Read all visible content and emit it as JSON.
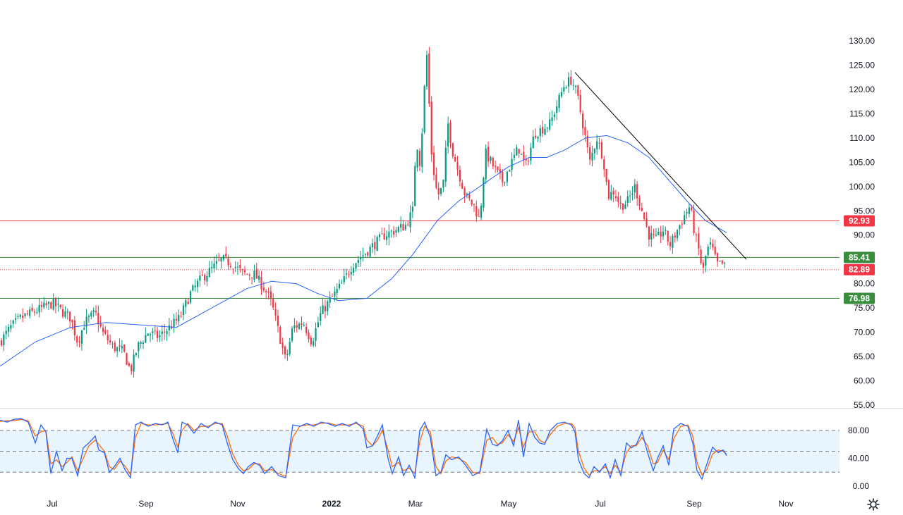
{
  "chart_data": {
    "type": "candlestick",
    "price_axis": {
      "ticks": [
        "130.00",
        "125.00",
        "120.00",
        "115.00",
        "110.00",
        "105.00",
        "100.00",
        "95.00",
        "90.00",
        "85.00",
        "80.00",
        "75.00",
        "70.00",
        "65.00",
        "60.00",
        "55.00"
      ],
      "range": [
        55,
        131
      ]
    },
    "time_axis": {
      "labels": [
        "Jul",
        "Sep",
        "Nov",
        "2022",
        "Mar",
        "May",
        "Jul",
        "Sep",
        "Nov"
      ]
    },
    "horizontal_levels": [
      {
        "value": 92.93,
        "label": "92.93",
        "color": "#f23645"
      },
      {
        "value": 85.41,
        "label": "85.41",
        "color": "#388e3c"
      },
      {
        "value": 76.98,
        "label": "76.98",
        "color": "#388e3c"
      }
    ],
    "last_price": {
      "value": 82.89,
      "label": "82.89",
      "color": "#f23645"
    },
    "price_path": [
      [
        0,
        68
      ],
      [
        15,
        71
      ],
      [
        30,
        73
      ],
      [
        45,
        74
      ],
      [
        60,
        75
      ],
      [
        75,
        76
      ],
      [
        90,
        74
      ],
      [
        100,
        73
      ],
      [
        110,
        68
      ],
      [
        120,
        72
      ],
      [
        135,
        74
      ],
      [
        145,
        70
      ],
      [
        160,
        67
      ],
      [
        175,
        66
      ],
      [
        185,
        62
      ],
      [
        195,
        67
      ],
      [
        210,
        70
      ],
      [
        225,
        69
      ],
      [
        240,
        71
      ],
      [
        255,
        73
      ],
      [
        270,
        78
      ],
      [
        285,
        81
      ],
      [
        300,
        83
      ],
      [
        315,
        85
      ],
      [
        330,
        84
      ],
      [
        345,
        82
      ],
      [
        360,
        82
      ],
      [
        375,
        79
      ],
      [
        385,
        76
      ],
      [
        395,
        70
      ],
      [
        405,
        64
      ],
      [
        415,
        71
      ],
      [
        430,
        72
      ],
      [
        442,
        68
      ],
      [
        455,
        74
      ],
      [
        470,
        77
      ],
      [
        485,
        80
      ],
      [
        500,
        84
      ],
      [
        515,
        86
      ],
      [
        530,
        88
      ],
      [
        545,
        90
      ],
      [
        560,
        91
      ],
      [
        575,
        92
      ],
      [
        585,
        95
      ],
      [
        590,
        110
      ],
      [
        596,
        104
      ],
      [
        600,
        117
      ],
      [
        605,
        127
      ],
      [
        612,
        106
      ],
      [
        620,
        98
      ],
      [
        628,
        100
      ],
      [
        635,
        113
      ],
      [
        642,
        107
      ],
      [
        650,
        103
      ],
      [
        660,
        98
      ],
      [
        672,
        96
      ],
      [
        680,
        93
      ],
      [
        688,
        107
      ],
      [
        700,
        104
      ],
      [
        712,
        101
      ],
      [
        722,
        104
      ],
      [
        735,
        108
      ],
      [
        745,
        104
      ],
      [
        758,
        111
      ],
      [
        770,
        112
      ],
      [
        780,
        113
      ],
      [
        790,
        117
      ],
      [
        800,
        121
      ],
      [
        810,
        122
      ],
      [
        818,
        119
      ],
      [
        826,
        113
      ],
      [
        836,
        105
      ],
      [
        846,
        110
      ],
      [
        855,
        106
      ],
      [
        862,
        98
      ],
      [
        870,
        99
      ],
      [
        880,
        96
      ],
      [
        890,
        97
      ],
      [
        900,
        100
      ],
      [
        910,
        95
      ],
      [
        920,
        90
      ],
      [
        930,
        89
      ],
      [
        940,
        91
      ],
      [
        950,
        88
      ],
      [
        960,
        91
      ],
      [
        970,
        94
      ],
      [
        978,
        96
      ],
      [
        985,
        90
      ],
      [
        992,
        86
      ],
      [
        996,
        82
      ],
      [
        1002,
        87
      ],
      [
        1008,
        88
      ],
      [
        1016,
        84
      ],
      [
        1024,
        84
      ],
      [
        1030,
        83
      ]
    ],
    "moving_average": [
      [
        0,
        63
      ],
      [
        50,
        68
      ],
      [
        100,
        71
      ],
      [
        150,
        72
      ],
      [
        200,
        71.5
      ],
      [
        250,
        71
      ],
      [
        300,
        75
      ],
      [
        350,
        79
      ],
      [
        385,
        80.5
      ],
      [
        420,
        80
      ],
      [
        450,
        78
      ],
      [
        480,
        76.5
      ],
      [
        520,
        77
      ],
      [
        555,
        81
      ],
      [
        585,
        86
      ],
      [
        620,
        93
      ],
      [
        650,
        97
      ],
      [
        690,
        101
      ],
      [
        720,
        104
      ],
      [
        750,
        106
      ],
      [
        775,
        106
      ],
      [
        800,
        107.5
      ],
      [
        830,
        110
      ],
      [
        860,
        110.5
      ],
      [
        890,
        109
      ],
      [
        920,
        106
      ],
      [
        950,
        101
      ],
      [
        980,
        96
      ],
      [
        1000,
        93
      ],
      [
        1030,
        90.5
      ]
    ],
    "trendline": {
      "from": [
        815,
        123.5
      ],
      "to": [
        1058,
        85
      ]
    },
    "oscillator": {
      "ticks": [
        "80.00",
        "40.00",
        "0.00"
      ],
      "range": [
        0,
        100
      ],
      "band": [
        20,
        80
      ],
      "midline": 50,
      "fast": [
        [
          0,
          95
        ],
        [
          10,
          92
        ],
        [
          20,
          96
        ],
        [
          30,
          97
        ],
        [
          40,
          92
        ],
        [
          50,
          62
        ],
        [
          58,
          88
        ],
        [
          65,
          78
        ],
        [
          72,
          18
        ],
        [
          80,
          50
        ],
        [
          88,
          22
        ],
        [
          95,
          40
        ],
        [
          102,
          40
        ],
        [
          110,
          15
        ],
        [
          118,
          55
        ],
        [
          126,
          62
        ],
        [
          135,
          72
        ],
        [
          140,
          52
        ],
        [
          148,
          48
        ],
        [
          155,
          20
        ],
        [
          162,
          28
        ],
        [
          170,
          40
        ],
        [
          178,
          22
        ],
        [
          185,
          12
        ],
        [
          192,
          88
        ],
        [
          200,
          92
        ],
        [
          210,
          86
        ],
        [
          220,
          90
        ],
        [
          230,
          88
        ],
        [
          238,
          92
        ],
        [
          245,
          68
        ],
        [
          252,
          48
        ],
        [
          258,
          92
        ],
        [
          266,
          88
        ],
        [
          275,
          76
        ],
        [
          285,
          90
        ],
        [
          295,
          84
        ],
        [
          305,
          92
        ],
        [
          315,
          88
        ],
        [
          322,
          62
        ],
        [
          330,
          38
        ],
        [
          338,
          25
        ],
        [
          345,
          18
        ],
        [
          352,
          28
        ],
        [
          360,
          34
        ],
        [
          368,
          30
        ],
        [
          375,
          18
        ],
        [
          385,
          28
        ],
        [
          395,
          15
        ],
        [
          405,
          12
        ],
        [
          415,
          88
        ],
        [
          425,
          86
        ],
        [
          435,
          90
        ],
        [
          445,
          86
        ],
        [
          455,
          92
        ],
        [
          465,
          90
        ],
        [
          475,
          86
        ],
        [
          485,
          90
        ],
        [
          495,
          86
        ],
        [
          505,
          92
        ],
        [
          515,
          82
        ],
        [
          520,
          55
        ],
        [
          528,
          58
        ],
        [
          535,
          72
        ],
        [
          542,
          88
        ],
        [
          550,
          40
        ],
        [
          556,
          18
        ],
        [
          565,
          42
        ],
        [
          572,
          15
        ],
        [
          580,
          30
        ],
        [
          588,
          12
        ],
        [
          595,
          80
        ],
        [
          602,
          92
        ],
        [
          610,
          70
        ],
        [
          618,
          15
        ],
        [
          625,
          20
        ],
        [
          632,
          45
        ],
        [
          640,
          38
        ],
        [
          650,
          42
        ],
        [
          660,
          30
        ],
        [
          670,
          15
        ],
        [
          680,
          20
        ],
        [
          690,
          82
        ],
        [
          698,
          60
        ],
        [
          705,
          58
        ],
        [
          712,
          65
        ],
        [
          720,
          80
        ],
        [
          728,
          58
        ],
        [
          735,
          95
        ],
        [
          742,
          42
        ],
        [
          750,
          90
        ],
        [
          758,
          70
        ],
        [
          765,
          62
        ],
        [
          772,
          60
        ],
        [
          780,
          80
        ],
        [
          790,
          90
        ],
        [
          800,
          92
        ],
        [
          810,
          88
        ],
        [
          815,
          78
        ],
        [
          820,
          38
        ],
        [
          828,
          18
        ],
        [
          835,
          12
        ],
        [
          842,
          28
        ],
        [
          850,
          20
        ],
        [
          858,
          32
        ],
        [
          865,
          12
        ],
        [
          872,
          38
        ],
        [
          880,
          15
        ],
        [
          888,
          62
        ],
        [
          895,
          55
        ],
        [
          902,
          60
        ],
        [
          910,
          78
        ],
        [
          918,
          48
        ],
        [
          926,
          22
        ],
        [
          932,
          40
        ],
        [
          940,
          58
        ],
        [
          948,
          30
        ],
        [
          955,
          82
        ],
        [
          965,
          90
        ],
        [
          975,
          86
        ],
        [
          982,
          62
        ],
        [
          988,
          22
        ],
        [
          995,
          10
        ],
        [
          1002,
          32
        ],
        [
          1010,
          56
        ],
        [
          1018,
          48
        ],
        [
          1025,
          52
        ],
        [
          1030,
          44
        ]
      ],
      "slow": [
        [
          0,
          93
        ],
        [
          10,
          94
        ],
        [
          20,
          94
        ],
        [
          30,
          96
        ],
        [
          40,
          94
        ],
        [
          50,
          72
        ],
        [
          58,
          78
        ],
        [
          65,
          80
        ],
        [
          72,
          32
        ],
        [
          80,
          38
        ],
        [
          88,
          28
        ],
        [
          95,
          34
        ],
        [
          102,
          42
        ],
        [
          110,
          22
        ],
        [
          118,
          40
        ],
        [
          126,
          58
        ],
        [
          135,
          66
        ],
        [
          140,
          60
        ],
        [
          148,
          50
        ],
        [
          155,
          28
        ],
        [
          162,
          24
        ],
        [
          170,
          36
        ],
        [
          178,
          28
        ],
        [
          185,
          16
        ],
        [
          192,
          70
        ],
        [
          200,
          90
        ],
        [
          210,
          88
        ],
        [
          220,
          88
        ],
        [
          230,
          89
        ],
        [
          238,
          90
        ],
        [
          245,
          76
        ],
        [
          252,
          56
        ],
        [
          258,
          80
        ],
        [
          266,
          90
        ],
        [
          275,
          80
        ],
        [
          285,
          86
        ],
        [
          295,
          86
        ],
        [
          305,
          90
        ],
        [
          315,
          90
        ],
        [
          322,
          72
        ],
        [
          330,
          46
        ],
        [
          338,
          30
        ],
        [
          345,
          22
        ],
        [
          352,
          24
        ],
        [
          360,
          32
        ],
        [
          368,
          32
        ],
        [
          375,
          22
        ],
        [
          385,
          24
        ],
        [
          395,
          18
        ],
        [
          405,
          14
        ],
        [
          415,
          70
        ],
        [
          425,
          86
        ],
        [
          435,
          88
        ],
        [
          445,
          88
        ],
        [
          455,
          90
        ],
        [
          465,
          91
        ],
        [
          475,
          88
        ],
        [
          485,
          88
        ],
        [
          495,
          88
        ],
        [
          505,
          90
        ],
        [
          515,
          86
        ],
        [
          520,
          66
        ],
        [
          528,
          58
        ],
        [
          535,
          66
        ],
        [
          542,
          80
        ],
        [
          550,
          52
        ],
        [
          556,
          28
        ],
        [
          565,
          34
        ],
        [
          572,
          22
        ],
        [
          580,
          26
        ],
        [
          588,
          18
        ],
        [
          595,
          64
        ],
        [
          602,
          86
        ],
        [
          610,
          78
        ],
        [
          618,
          28
        ],
        [
          625,
          18
        ],
        [
          632,
          36
        ],
        [
          640,
          42
        ],
        [
          650,
          40
        ],
        [
          660,
          34
        ],
        [
          670,
          20
        ],
        [
          680,
          18
        ],
        [
          690,
          66
        ],
        [
          698,
          70
        ],
        [
          705,
          60
        ],
        [
          712,
          62
        ],
        [
          720,
          74
        ],
        [
          728,
          64
        ],
        [
          735,
          84
        ],
        [
          742,
          56
        ],
        [
          750,
          78
        ],
        [
          758,
          78
        ],
        [
          765,
          66
        ],
        [
          772,
          62
        ],
        [
          780,
          74
        ],
        [
          790,
          86
        ],
        [
          800,
          90
        ],
        [
          810,
          90
        ],
        [
          815,
          84
        ],
        [
          820,
          50
        ],
        [
          828,
          26
        ],
        [
          835,
          16
        ],
        [
          842,
          22
        ],
        [
          850,
          22
        ],
        [
          858,
          28
        ],
        [
          865,
          18
        ],
        [
          872,
          30
        ],
        [
          880,
          20
        ],
        [
          888,
          48
        ],
        [
          895,
          58
        ],
        [
          902,
          58
        ],
        [
          910,
          70
        ],
        [
          918,
          58
        ],
        [
          926,
          32
        ],
        [
          932,
          34
        ],
        [
          940,
          52
        ],
        [
          948,
          38
        ],
        [
          955,
          68
        ],
        [
          965,
          86
        ],
        [
          975,
          88
        ],
        [
          982,
          72
        ],
        [
          988,
          34
        ],
        [
          995,
          16
        ],
        [
          1002,
          24
        ],
        [
          1010,
          46
        ],
        [
          1018,
          52
        ],
        [
          1025,
          50
        ],
        [
          1030,
          46
        ]
      ],
      "fast_color": "#2962ff",
      "slow_color": "#ff6d00"
    },
    "colors": {
      "up": "#089981",
      "down": "#f23645",
      "ma": "#2962ff",
      "trendline": "#000000"
    }
  },
  "settings_icon": "gear-icon"
}
